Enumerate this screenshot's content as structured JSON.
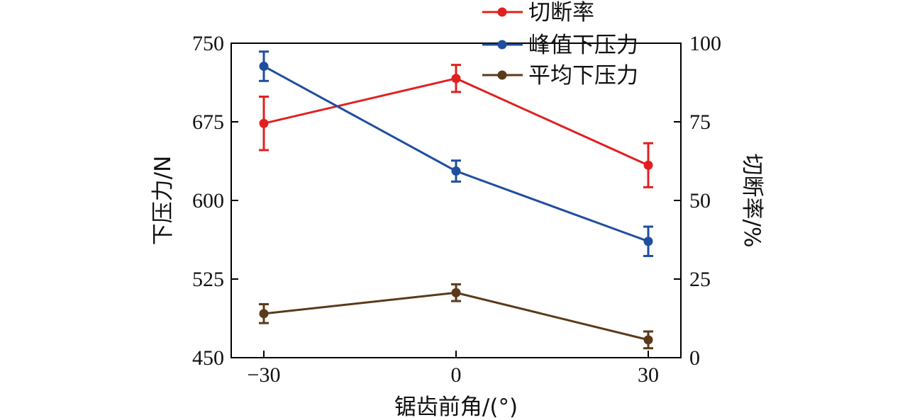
{
  "chart_data": {
    "type": "line",
    "xlabel": "锯齿前角/(°)",
    "ylabel_left": "下压力/N",
    "ylabel_right": "切断率/%",
    "x": [
      -30,
      0,
      30
    ],
    "x_ticks": [
      "−30",
      "0",
      "30"
    ],
    "ylim_left": [
      450,
      750
    ],
    "yticks_left": [
      450,
      525,
      600,
      675,
      750
    ],
    "ylim_right": [
      0,
      100
    ],
    "yticks_right": [
      0,
      25,
      50,
      75,
      100
    ],
    "legend_position": "top-right",
    "grid": false,
    "series": [
      {
        "name": "切断率",
        "axis": "right",
        "color": "#e02020",
        "values": [
          74.5,
          88.8,
          61.2
        ],
        "errors": [
          8.5,
          4.3,
          7.0
        ]
      },
      {
        "name": "峰值下压力",
        "axis": "left",
        "color": "#1f4e9e",
        "values": [
          728,
          628,
          561
        ],
        "errors": [
          14,
          10,
          14
        ]
      },
      {
        "name": "平均下压力",
        "axis": "left",
        "color": "#5a3a1a",
        "values": [
          492,
          512,
          467
        ],
        "errors": [
          9,
          8,
          8
        ]
      }
    ]
  }
}
